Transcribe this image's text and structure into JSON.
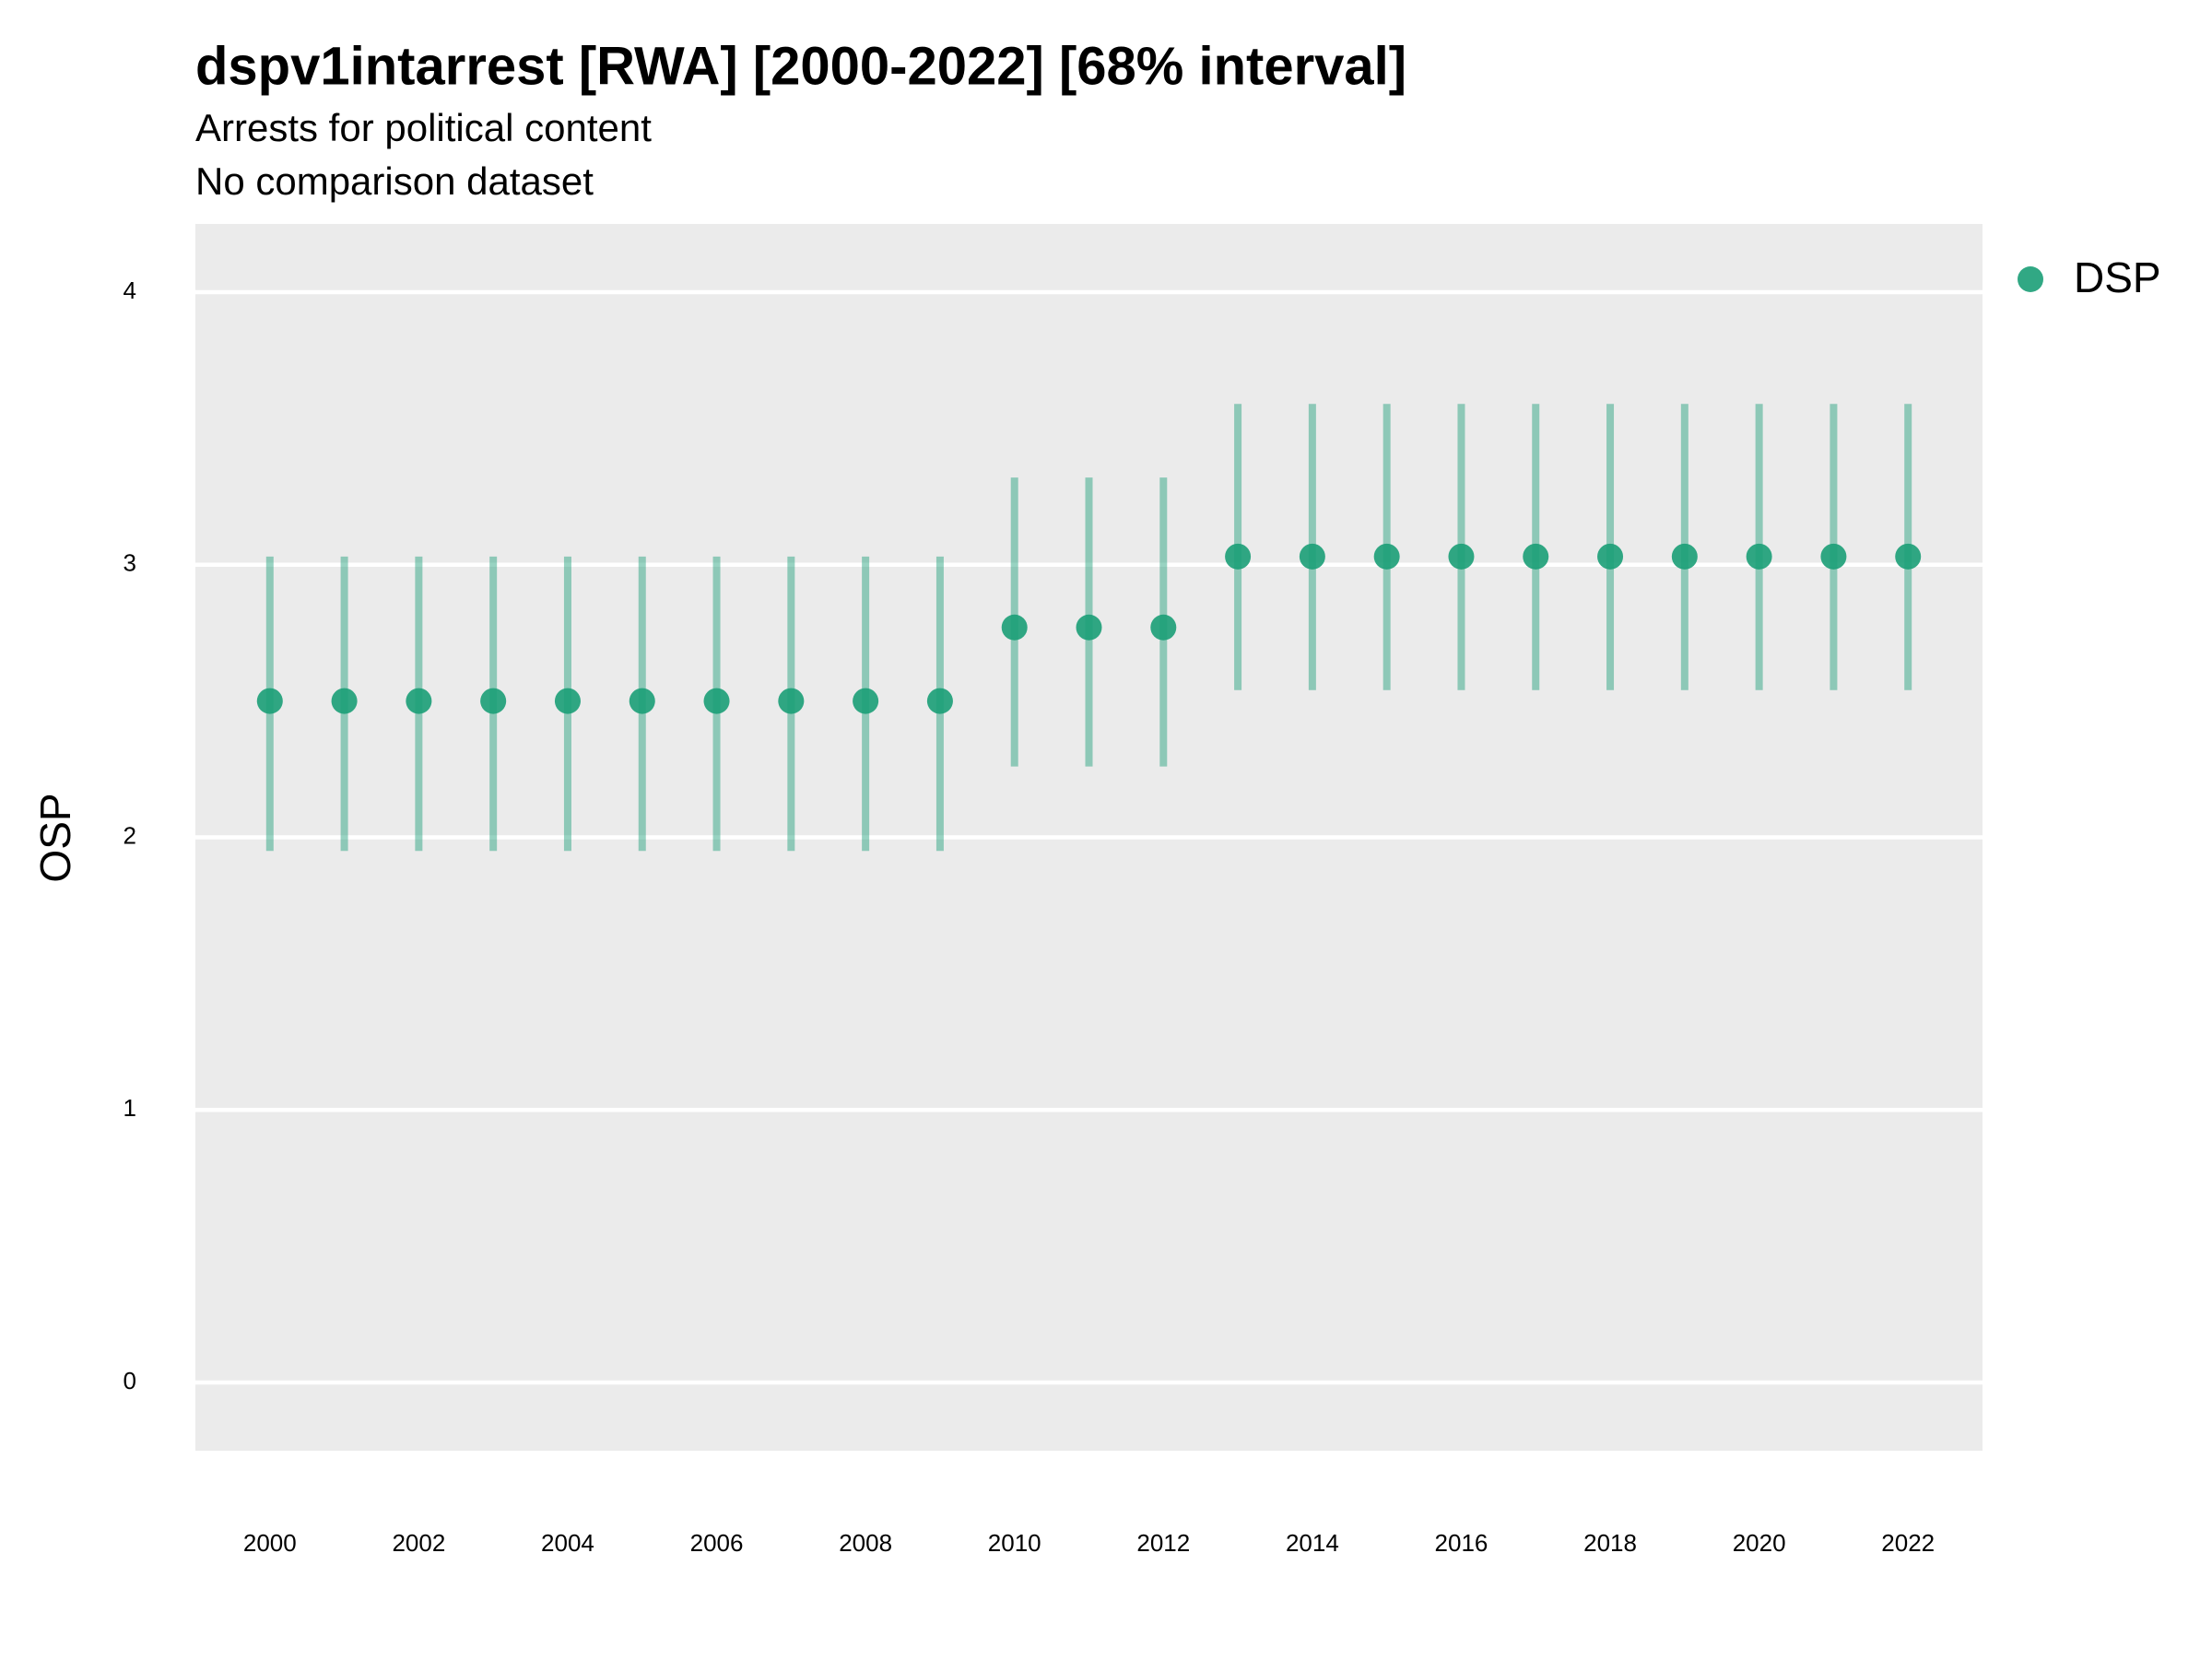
{
  "chart_data": {
    "type": "pointrange",
    "title": "dspv1intarrest [RWA] [2000-2022] [68% interval]",
    "subtitle": "Arrests for political content",
    "subtitle2": "No comparison dataset",
    "ylabel": "OSP",
    "x": [
      2000,
      2001,
      2002,
      2003,
      2004,
      2005,
      2006,
      2007,
      2008,
      2009,
      2010,
      2011,
      2012,
      2013,
      2014,
      2015,
      2016,
      2017,
      2018,
      2019,
      2020,
      2021,
      2022
    ],
    "series": [
      {
        "name": "DSP",
        "color": "#1b9e77",
        "values": [
          2.5,
          2.5,
          2.5,
          2.5,
          2.5,
          2.5,
          2.5,
          2.5,
          2.5,
          2.5,
          2.77,
          2.77,
          2.77,
          3.03,
          3.03,
          3.03,
          3.03,
          3.03,
          3.03,
          3.03,
          3.03,
          3.03,
          3.03
        ],
        "lower": [
          1.95,
          1.95,
          1.95,
          1.95,
          1.95,
          1.95,
          1.95,
          1.95,
          1.95,
          1.95,
          2.26,
          2.26,
          2.26,
          2.54,
          2.54,
          2.54,
          2.54,
          2.54,
          2.54,
          2.54,
          2.54,
          2.54,
          2.54
        ],
        "upper": [
          3.03,
          3.03,
          3.03,
          3.03,
          3.03,
          3.03,
          3.03,
          3.03,
          3.03,
          3.03,
          3.32,
          3.32,
          3.32,
          3.59,
          3.59,
          3.59,
          3.59,
          3.59,
          3.59,
          3.59,
          3.59,
          3.59,
          3.59
        ]
      }
    ],
    "xlim": [
      1999,
      2023
    ],
    "xticks": [
      2000,
      2002,
      2004,
      2006,
      2008,
      2010,
      2012,
      2014,
      2016,
      2018,
      2020,
      2022
    ],
    "ylim": [
      -0.25,
      4.25
    ],
    "yticks": [
      0,
      1,
      2,
      3,
      4
    ],
    "grid": true,
    "legend": "right"
  }
}
